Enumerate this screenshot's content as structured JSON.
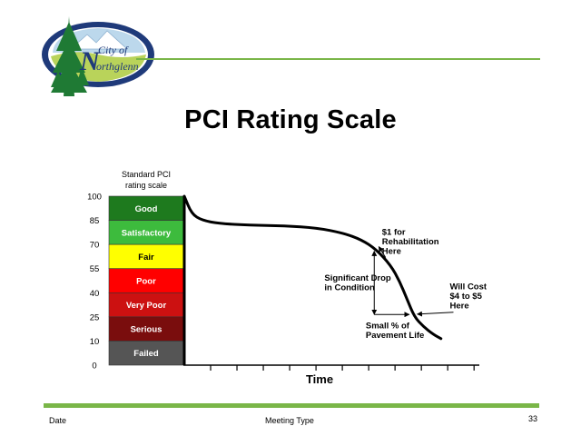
{
  "logo": {
    "line1": "City of",
    "line2": "orthglenn",
    "initial": "N",
    "colors": {
      "oval": "#1f3a7a",
      "ring": "#ffffff",
      "tree": "#1f7a34",
      "sky": "#bcd8ec",
      "ground": "#b9d35a"
    }
  },
  "slide": {
    "title": "PCI Rating Scale"
  },
  "chart_data": {
    "type": "line",
    "title": "PCI Rating Scale",
    "scale_heading": [
      "Standard PCI",
      "rating scale"
    ],
    "xlabel": "Time",
    "ylabel": "",
    "ylim": [
      0,
      100
    ],
    "xlim": [
      0,
      10
    ],
    "y_ticks": [
      0,
      10,
      25,
      40,
      55,
      70,
      85,
      100
    ],
    "x_tick_count": 11,
    "bands": [
      {
        "label": "Good",
        "from": 85,
        "to": 100,
        "color": "#1e7a1e",
        "text_color": "#ffffff"
      },
      {
        "label": "Satisfactory",
        "from": 70,
        "to": 85,
        "color": "#3dbb3d",
        "text_color": "#ffffff"
      },
      {
        "label": "Fair",
        "from": 55,
        "to": 70,
        "color": "#ffff00",
        "text_color": "#000000"
      },
      {
        "label": "Poor",
        "from": 40,
        "to": 55,
        "color": "#ff0000",
        "text_color": "#ffffff"
      },
      {
        "label": "Very Poor",
        "from": 25,
        "to": 40,
        "color": "#cc1111",
        "text_color": "#ffffff"
      },
      {
        "label": "Serious",
        "from": 10,
        "to": 25,
        "color": "#7a0d0d",
        "text_color": "#ffffff"
      },
      {
        "label": "Failed",
        "from": 0,
        "to": 10,
        "color": "#555555",
        "text_color": "#ffffff"
      }
    ],
    "series": [
      {
        "color": "#000000",
        "points": [
          [
            0.0,
            100
          ],
          [
            0.25,
            89
          ],
          [
            0.6,
            85
          ],
          [
            1.2,
            83
          ],
          [
            2.2,
            82
          ],
          [
            3.4,
            81.6
          ],
          [
            4.5,
            80.3
          ],
          [
            5.4,
            77
          ],
          [
            6.0,
            73
          ],
          [
            6.5,
            67
          ],
          [
            7.0,
            57
          ],
          [
            7.3,
            47
          ],
          [
            7.55,
            36
          ],
          [
            7.8,
            25
          ],
          [
            8.1,
            19
          ],
          [
            8.45,
            14
          ],
          [
            8.7,
            11.5
          ]
        ]
      }
    ],
    "drop_marker": {
      "x": 6.5,
      "y_top": 67,
      "y_bottom": 26.5,
      "x_end": 7.75
    },
    "annotations": [
      {
        "lines": [
          "$1 for",
          "Rehabilitation",
          "Here"
        ],
        "x": 6.7,
        "y": 76,
        "anchor": "start",
        "arrow_to": [
          6.5,
          67
        ]
      },
      {
        "lines": [
          "Significant Drop",
          "in Condition"
        ],
        "x": 4.75,
        "y": 47.5,
        "anchor": "start"
      },
      {
        "lines": [
          "Small % of",
          "Pavement Life"
        ],
        "x": 6.15,
        "y": 18,
        "anchor": "start"
      },
      {
        "lines": [
          "Will Cost",
          "$4 to $5",
          "Here"
        ],
        "x": 9.0,
        "y": 42,
        "anchor": "start",
        "arrow_to": [
          7.8,
          25
        ]
      }
    ]
  },
  "footer": {
    "left": "Date",
    "center": "Meeting Type",
    "page": "33"
  }
}
